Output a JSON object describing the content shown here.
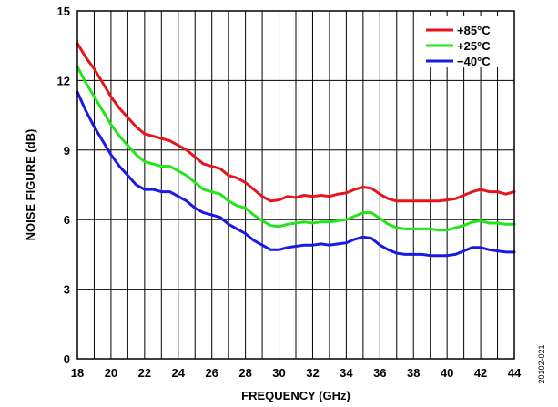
{
  "chart_data": {
    "type": "line",
    "title": "",
    "xlabel": "FREQUENCY (GHz)",
    "ylabel": "NOISE FIGURE (dB)",
    "xlim": [
      18,
      44
    ],
    "ylim": [
      0,
      15
    ],
    "xticks": [
      18,
      20,
      22,
      24,
      26,
      28,
      30,
      32,
      34,
      36,
      38,
      40,
      42,
      44
    ],
    "yticks": [
      0,
      3,
      6,
      9,
      12,
      15
    ],
    "x_minor_gridlines": true,
    "grid": true,
    "legend_position": "top-right",
    "figure_code": "20102-021",
    "x": [
      18,
      18.5,
      19,
      19.5,
      20,
      20.5,
      21,
      21.5,
      22,
      22.5,
      23,
      23.5,
      24,
      24.5,
      25,
      25.5,
      26,
      26.5,
      27,
      27.5,
      28,
      28.5,
      29,
      29.5,
      30,
      30.5,
      31,
      31.5,
      32,
      32.5,
      33,
      33.5,
      34,
      34.5,
      35,
      35.5,
      36,
      36.5,
      37,
      37.5,
      38,
      38.5,
      39,
      39.5,
      40,
      40.5,
      41,
      41.5,
      42,
      42.5,
      43,
      43.5,
      44
    ],
    "series": [
      {
        "name": "+85°C",
        "color": "#e8141b",
        "values": [
          13.6,
          13.0,
          12.5,
          11.9,
          11.3,
          10.8,
          10.4,
          10.0,
          9.7,
          9.6,
          9.5,
          9.4,
          9.2,
          9.0,
          8.7,
          8.4,
          8.3,
          8.2,
          7.9,
          7.8,
          7.6,
          7.3,
          7.0,
          6.8,
          6.85,
          7.0,
          6.95,
          7.05,
          7.0,
          7.05,
          7.0,
          7.1,
          7.15,
          7.3,
          7.4,
          7.35,
          7.1,
          6.9,
          6.8,
          6.8,
          6.8,
          6.8,
          6.8,
          6.8,
          6.85,
          6.9,
          7.05,
          7.2,
          7.3,
          7.2,
          7.2,
          7.1,
          7.2
        ]
      },
      {
        "name": "+25°C",
        "color": "#22e61b",
        "values": [
          12.6,
          11.9,
          11.3,
          10.7,
          10.1,
          9.6,
          9.2,
          8.8,
          8.5,
          8.4,
          8.3,
          8.3,
          8.1,
          7.9,
          7.6,
          7.3,
          7.2,
          7.1,
          6.8,
          6.6,
          6.5,
          6.2,
          5.95,
          5.75,
          5.7,
          5.8,
          5.85,
          5.9,
          5.85,
          5.9,
          5.9,
          5.95,
          6.0,
          6.15,
          6.3,
          6.3,
          6.05,
          5.8,
          5.65,
          5.6,
          5.6,
          5.6,
          5.6,
          5.55,
          5.55,
          5.65,
          5.75,
          5.9,
          5.95,
          5.85,
          5.85,
          5.8,
          5.8
        ]
      },
      {
        "name": "−40°C",
        "color": "#1a1ae6",
        "values": [
          11.5,
          10.7,
          10.0,
          9.4,
          8.8,
          8.3,
          7.9,
          7.5,
          7.3,
          7.3,
          7.2,
          7.2,
          7.0,
          6.8,
          6.5,
          6.3,
          6.2,
          6.1,
          5.8,
          5.6,
          5.4,
          5.1,
          4.9,
          4.7,
          4.7,
          4.8,
          4.85,
          4.9,
          4.9,
          4.95,
          4.9,
          4.95,
          5.0,
          5.15,
          5.25,
          5.2,
          4.9,
          4.7,
          4.55,
          4.5,
          4.5,
          4.5,
          4.45,
          4.45,
          4.45,
          4.5,
          4.65,
          4.8,
          4.8,
          4.7,
          4.65,
          4.6,
          4.6
        ]
      }
    ]
  }
}
